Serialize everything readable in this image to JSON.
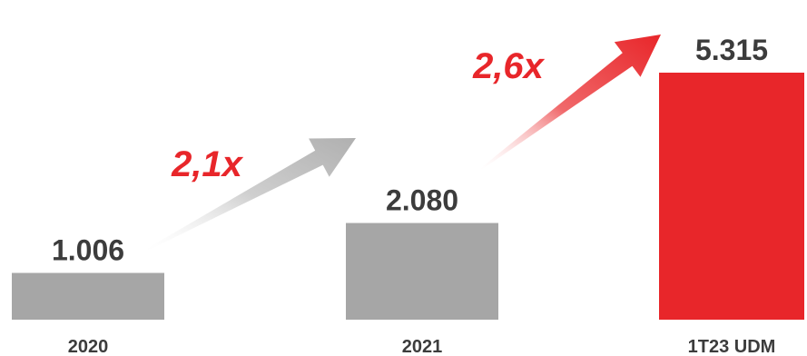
{
  "chart_data": {
    "type": "bar",
    "categories": [
      "2020",
      "2021",
      "1T23 UDM"
    ],
    "values": [
      1006,
      2080,
      5315
    ],
    "value_labels": [
      "1.006",
      "2.080",
      "5.315"
    ],
    "growth_labels": [
      {
        "text": "2,1x",
        "from": "2020",
        "to": "2021"
      },
      {
        "text": "2,6x",
        "from": "2021",
        "to": "1T23 UDM"
      }
    ],
    "title": "",
    "xlabel": "",
    "ylabel": "",
    "ylim": [
      0,
      5315
    ],
    "grid": false,
    "legend": "none"
  },
  "colors": {
    "bar_default": "#a6a6a6",
    "bar_highlight": "#e8262a",
    "label_text": "#3c3c3c",
    "growth_text": "#e8262a",
    "arrow_gray": "#bdbdbd",
    "arrow_red": "#e8262a"
  }
}
